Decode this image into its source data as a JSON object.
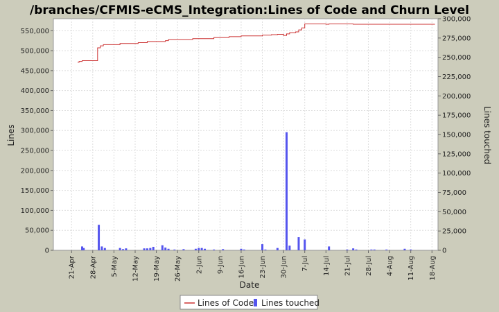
{
  "chart_data": {
    "type": "bar+line",
    "title": "/branches/CFMIS-eCMS_Integration:Lines of Code and Churn Level",
    "xlabel": "Date",
    "ylabel_left": "Lines",
    "ylabel_right": "Lines touched",
    "x_ticks": [
      "21-Apr",
      "28-Apr",
      "5-May",
      "12-May",
      "19-May",
      "26-May",
      "2-Jun",
      "9-Jun",
      "16-Jun",
      "23-Jun",
      "30-Jun",
      "7-Jul",
      "14-Jul",
      "21-Jul",
      "28-Jul",
      "4-Aug",
      "11-Aug",
      "18-Aug"
    ],
    "y_left_ticks": [
      "0",
      "50,000",
      "100,000",
      "150,000",
      "200,000",
      "250,000",
      "300,000",
      "350,000",
      "400,000",
      "450,000",
      "500,000",
      "550,000"
    ],
    "y_right_ticks": [
      "0",
      "25,000",
      "50,000",
      "75,000",
      "100,000",
      "125,000",
      "150,000",
      "175,000",
      "200,000",
      "225,000",
      "250,000",
      "275,000",
      "300,000"
    ],
    "ylim_left": [
      0,
      580000
    ],
    "ylim_right": [
      0,
      300000
    ],
    "xlim_days": [
      -6,
      121
    ],
    "grid": true,
    "legend_position": "bottom",
    "series": [
      {
        "name": "Lines of Code",
        "type": "step-line",
        "color": "#cc3333",
        "axis": "left",
        "points": [
          [
            2,
            471000
          ],
          [
            2.5,
            473000
          ],
          [
            3.5,
            475000
          ],
          [
            8.5,
            475000
          ],
          [
            8.6,
            507000
          ],
          [
            9.5,
            512000
          ],
          [
            10.5,
            515000
          ],
          [
            15,
            515000
          ],
          [
            16,
            518000
          ],
          [
            22,
            520000
          ],
          [
            25,
            523000
          ],
          [
            31,
            525000
          ],
          [
            32,
            528000
          ],
          [
            40,
            530000
          ],
          [
            47,
            533000
          ],
          [
            52,
            535000
          ],
          [
            56,
            537000
          ],
          [
            63,
            539000
          ],
          [
            66,
            540000
          ],
          [
            68,
            541000
          ],
          [
            70,
            538000
          ],
          [
            71,
            542000
          ],
          [
            72,
            545000
          ],
          [
            74,
            547000
          ],
          [
            75,
            552000
          ],
          [
            76,
            557000
          ],
          [
            77,
            567000
          ],
          [
            83,
            567000
          ],
          [
            84,
            566000
          ],
          [
            85,
            567000
          ],
          [
            92,
            567000
          ],
          [
            93,
            566000
          ],
          [
            120,
            566000
          ]
        ]
      },
      {
        "name": "Lines touched",
        "type": "bar",
        "color": "#5555ee",
        "axis": "right",
        "points": [
          [
            3.5,
            5000
          ],
          [
            4,
            3000
          ],
          [
            9,
            33000
          ],
          [
            10,
            5000
          ],
          [
            11,
            3000
          ],
          [
            16,
            3000
          ],
          [
            17,
            1500
          ],
          [
            18,
            2500
          ],
          [
            24,
            2500
          ],
          [
            25,
            2500
          ],
          [
            26,
            3000
          ],
          [
            27,
            4500
          ],
          [
            30,
            6500
          ],
          [
            31,
            3500
          ],
          [
            32,
            2000
          ],
          [
            34,
            1000
          ],
          [
            37,
            1500
          ],
          [
            41,
            2000
          ],
          [
            42,
            3000
          ],
          [
            43,
            3000
          ],
          [
            44,
            2000
          ],
          [
            47,
            1000
          ],
          [
            50,
            1500
          ],
          [
            56,
            2000
          ],
          [
            57,
            1000
          ],
          [
            63,
            8000
          ],
          [
            64,
            1000
          ],
          [
            68,
            3000
          ],
          [
            71,
            153000
          ],
          [
            72,
            6000
          ],
          [
            75,
            17000
          ],
          [
            77,
            14000
          ],
          [
            85,
            5000
          ],
          [
            91,
            1000
          ],
          [
            93,
            2500
          ],
          [
            94,
            1000
          ],
          [
            99,
            1000
          ],
          [
            100,
            1000
          ],
          [
            104,
            1000
          ],
          [
            110,
            2000
          ],
          [
            112,
            1000
          ]
        ]
      }
    ]
  }
}
